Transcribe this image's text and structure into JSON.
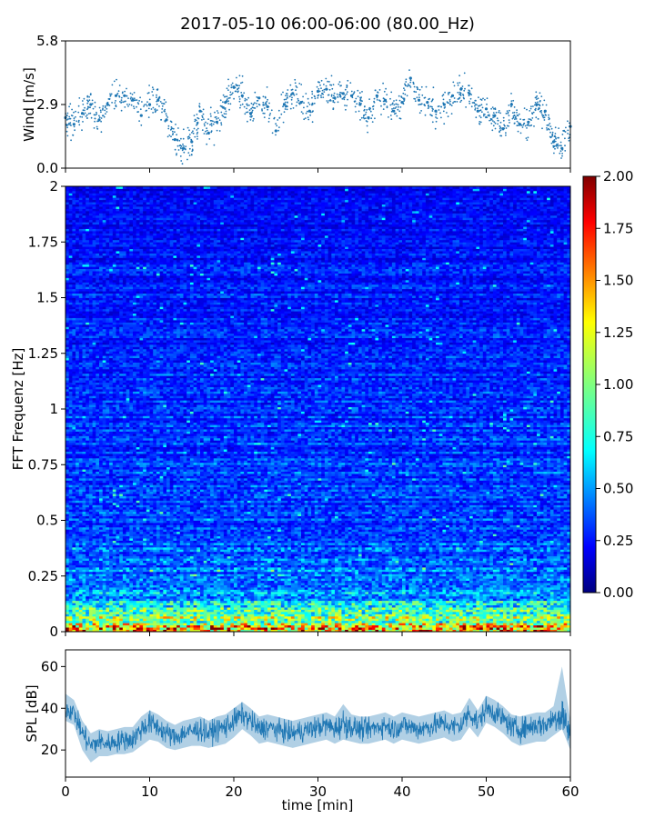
{
  "chart_data": [
    {
      "type": "scatter",
      "title": "2017-05-10 06:00-06:00 (80.00_Hz)",
      "ylabel": "Wind [m/s]",
      "xlim": [
        0,
        60
      ],
      "ylim": [
        0,
        5.8
      ],
      "yticks": [
        0.0,
        2.9,
        5.8
      ],
      "ytick_labels": [
        "0.0",
        "2.9",
        "5.8"
      ],
      "color": "#1f77b4",
      "series": [
        {
          "x": [
            0,
            1,
            2,
            3,
            4,
            5,
            6,
            7,
            8,
            9,
            10,
            11,
            12,
            13,
            14,
            15,
            16,
            17,
            18,
            19,
            20,
            21,
            22,
            23,
            24,
            25,
            26,
            27,
            28,
            29,
            30,
            31,
            32,
            33,
            34,
            35,
            36,
            37,
            38,
            39,
            40,
            41,
            42,
            43,
            44,
            45,
            46,
            47,
            48,
            49,
            50,
            51,
            52,
            53,
            54,
            55,
            56,
            57,
            58,
            59,
            60
          ],
          "values": [
            2.3,
            2.0,
            2.5,
            2.9,
            2.2,
            2.9,
            3.3,
            3.3,
            3.1,
            2.4,
            2.9,
            3.1,
            2.2,
            1.3,
            0.9,
            1.2,
            2.6,
            1.6,
            2.1,
            3.0,
            3.7,
            3.3,
            2.5,
            3.2,
            2.8,
            1.7,
            2.9,
            3.4,
            3.0,
            2.6,
            3.5,
            3.6,
            3.2,
            3.4,
            3.3,
            2.9,
            2.3,
            3.3,
            3.1,
            2.6,
            3.0,
            4.1,
            3.1,
            3.0,
            2.6,
            2.9,
            3.3,
            3.6,
            3.4,
            2.6,
            2.7,
            2.4,
            1.8,
            2.9,
            2.0,
            2.1,
            2.9,
            2.6,
            1.2,
            0.9,
            1.9
          ]
        }
      ]
    },
    {
      "type": "heatmap",
      "ylabel": "FFT Frequenz [Hz]",
      "xlim": [
        0,
        60
      ],
      "ylim": [
        0,
        2
      ],
      "yticks": [
        0,
        0.25,
        0.5,
        0.75,
        1,
        1.25,
        1.5,
        1.75,
        2
      ],
      "ytick_labels": [
        "0",
        "0.25",
        "0.5",
        "0.75",
        "1",
        "1.25",
        "1.5",
        "1.75",
        "2"
      ],
      "colormap": "jet",
      "colorbar": {
        "range": [
          0,
          2
        ],
        "ticks": [
          0.0,
          0.25,
          0.5,
          0.75,
          1.0,
          1.25,
          1.5,
          1.75,
          2.0
        ],
        "tick_labels": [
          "0.00",
          "0.25",
          "0.50",
          "0.75",
          "1.00",
          "1.25",
          "1.50",
          "1.75",
          "2.00"
        ]
      },
      "frequency_profile": {
        "freq": [
          0.0,
          0.02,
          0.05,
          0.1,
          0.15,
          0.25,
          0.5,
          1.0,
          1.5,
          2.0
        ],
        "mean_value": [
          2.0,
          1.6,
          1.0,
          0.75,
          0.55,
          0.42,
          0.35,
          0.3,
          0.27,
          0.2
        ]
      }
    },
    {
      "type": "line",
      "ylabel": "SPL [dB]",
      "xlabel": "time [min]",
      "xlim": [
        0,
        60
      ],
      "ylim": [
        7,
        68
      ],
      "xticks": [
        0,
        10,
        20,
        30,
        40,
        50,
        60
      ],
      "xtick_labels": [
        "0",
        "10",
        "20",
        "30",
        "40",
        "50",
        "60"
      ],
      "yticks": [
        20,
        40,
        60
      ],
      "ytick_labels": [
        "20",
        "40",
        "60"
      ],
      "color": "#1f77b4",
      "series": [
        {
          "x": [
            0,
            1,
            2,
            3,
            4,
            5,
            6,
            7,
            8,
            9,
            10,
            11,
            12,
            13,
            14,
            15,
            16,
            17,
            18,
            19,
            20,
            21,
            22,
            23,
            24,
            25,
            26,
            27,
            28,
            29,
            30,
            31,
            32,
            33,
            34,
            35,
            36,
            37,
            38,
            39,
            40,
            41,
            42,
            43,
            44,
            45,
            46,
            47,
            48,
            49,
            50,
            51,
            52,
            53,
            54,
            55,
            56,
            57,
            58,
            59,
            60
          ],
          "values": [
            40,
            38,
            28,
            22,
            24,
            23,
            24,
            25,
            25,
            30,
            33,
            31,
            28,
            26,
            28,
            29,
            30,
            28,
            30,
            31,
            34,
            37,
            34,
            30,
            31,
            30,
            29,
            28,
            29,
            30,
            31,
            32,
            30,
            33,
            31,
            30,
            30,
            31,
            32,
            30,
            32,
            31,
            30,
            31,
            32,
            33,
            31,
            32,
            38,
            33,
            40,
            38,
            35,
            31,
            30,
            31,
            32,
            32,
            35,
            38,
            27
          ],
          "band_low": [
            34,
            32,
            20,
            14,
            17,
            17,
            18,
            18,
            19,
            22,
            25,
            24,
            21,
            20,
            21,
            22,
            22,
            21,
            22,
            23,
            26,
            30,
            27,
            23,
            24,
            23,
            22,
            21,
            22,
            23,
            24,
            25,
            23,
            25,
            24,
            23,
            23,
            24,
            25,
            23,
            25,
            24,
            23,
            24,
            25,
            26,
            24,
            25,
            31,
            26,
            33,
            31,
            28,
            24,
            22,
            23,
            24,
            24,
            27,
            30,
            20
          ],
          "band_high": [
            47,
            44,
            34,
            28,
            30,
            29,
            30,
            31,
            31,
            36,
            39,
            37,
            34,
            32,
            34,
            35,
            36,
            34,
            36,
            37,
            40,
            43,
            40,
            36,
            37,
            36,
            35,
            34,
            35,
            36,
            37,
            38,
            36,
            42,
            37,
            36,
            36,
            37,
            38,
            36,
            38,
            37,
            36,
            37,
            38,
            39,
            37,
            38,
            45,
            39,
            46,
            44,
            41,
            37,
            36,
            37,
            38,
            38,
            41,
            60,
            34
          ]
        }
      ]
    }
  ]
}
